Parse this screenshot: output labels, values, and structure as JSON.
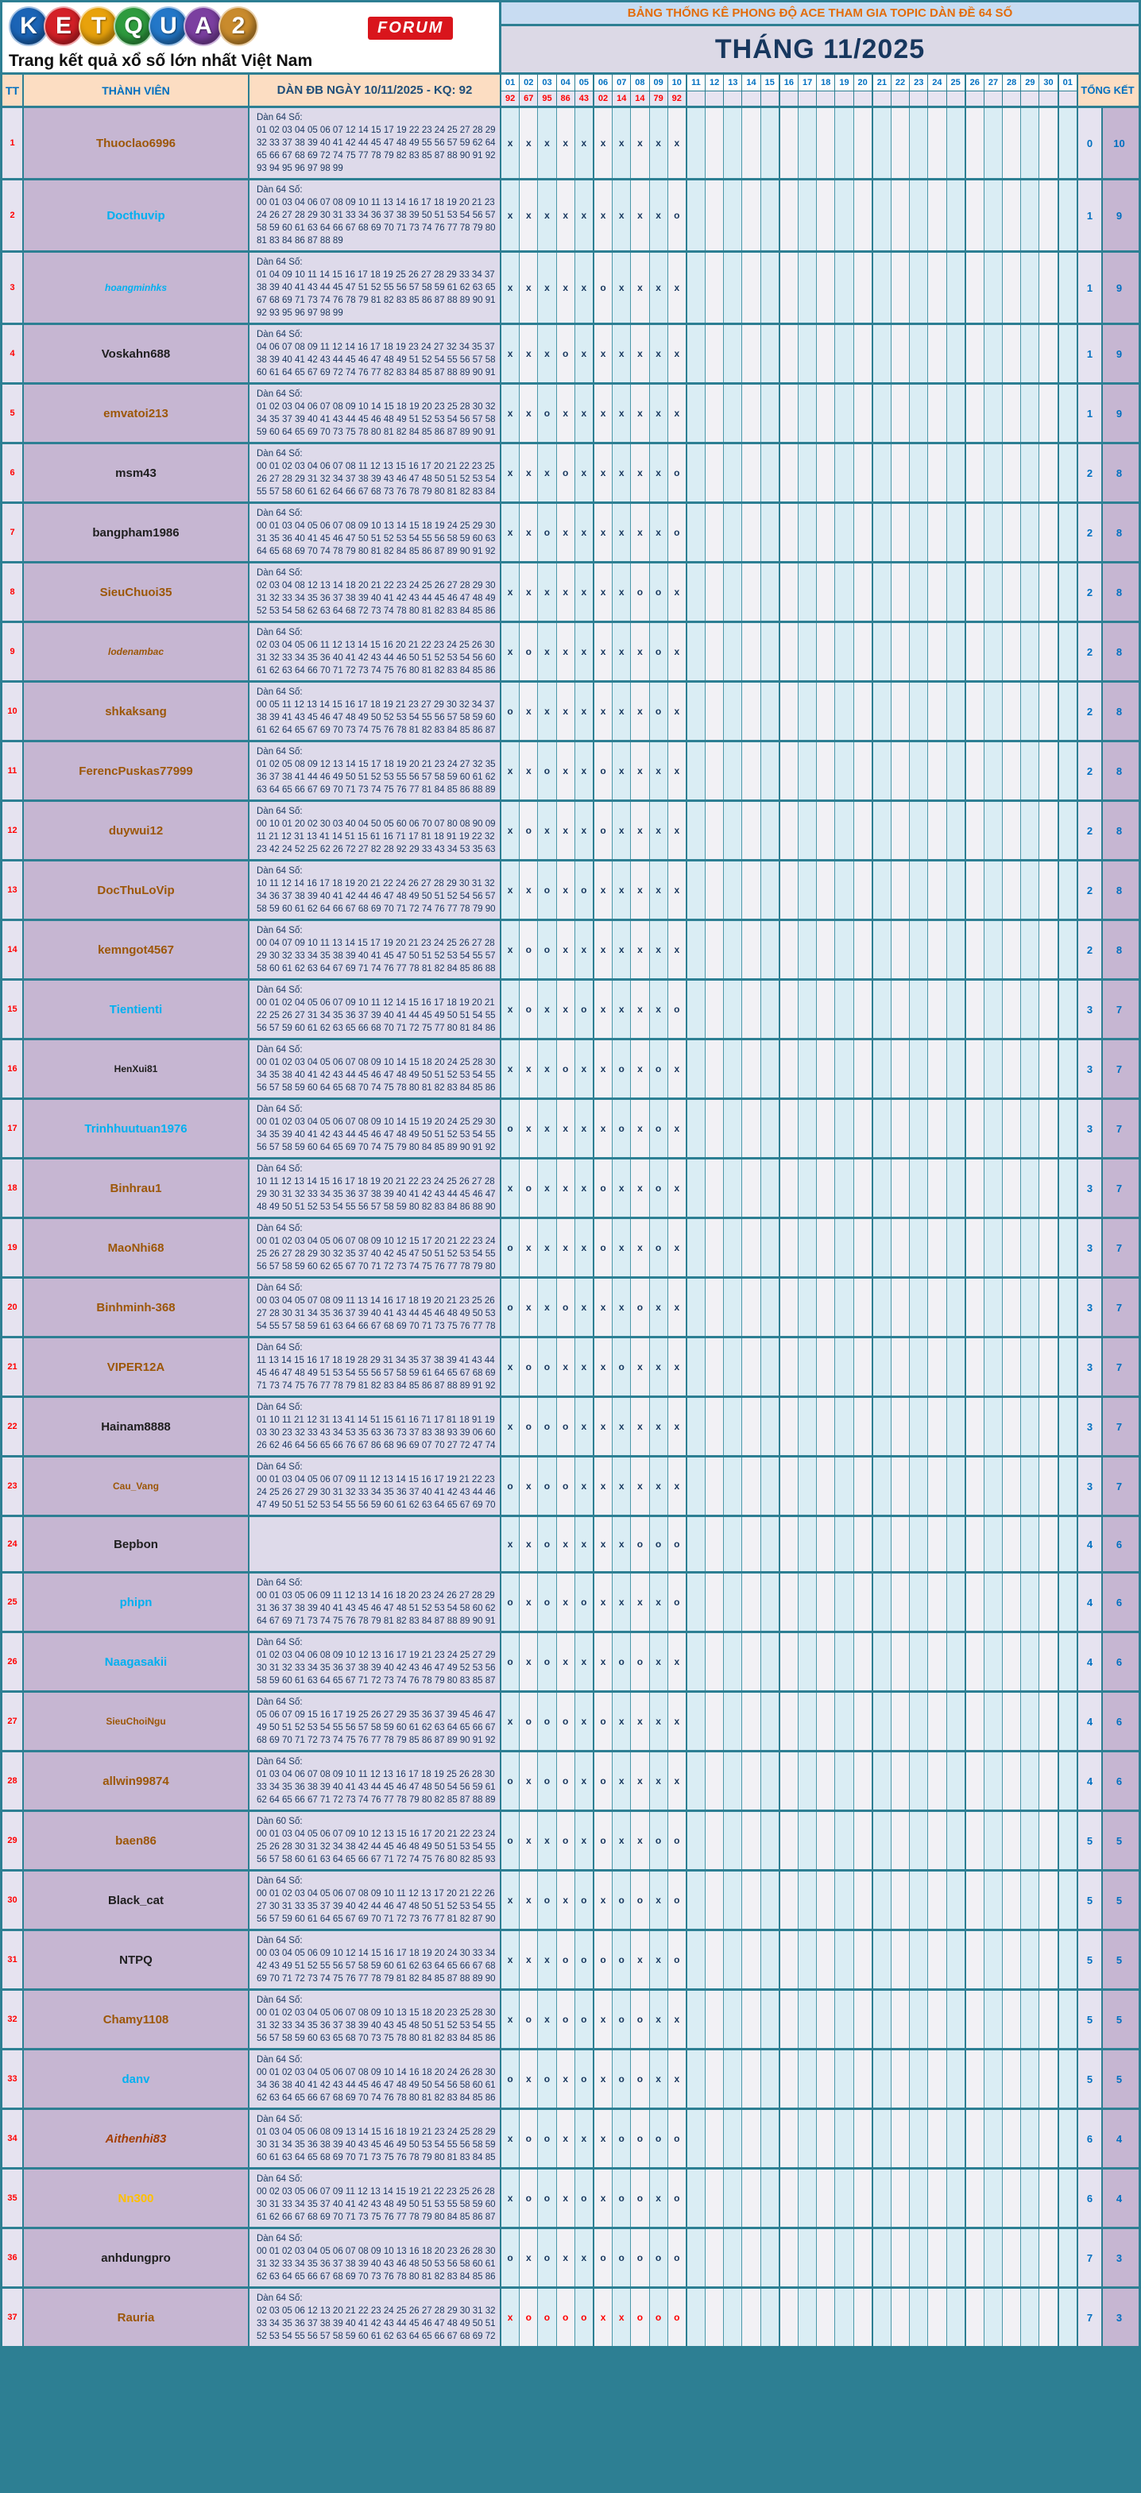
{
  "logo": {
    "letters": [
      {
        "ch": "K",
        "color": "#1b64b6"
      },
      {
        "ch": "E",
        "color": "#d42027"
      },
      {
        "ch": "T",
        "color": "#e8a20c"
      },
      {
        "ch": "Q",
        "color": "#2e9b3e"
      },
      {
        "ch": "U",
        "color": "#2377c8"
      },
      {
        "ch": "A",
        "color": "#7b3fa0"
      },
      {
        "ch": "2",
        "color": "#c98b2d"
      }
    ],
    "badge": "FORUM",
    "tagline": "Trang kết quả xổ số lớn nhất Việt Nam"
  },
  "banner": {
    "title": "BẢNG THỐNG KÊ PHONG ĐỘ ACE THAM GIA TOPIC DÀN ĐỀ 64 SỐ"
  },
  "month_title": "THÁNG 11/2025",
  "table": {
    "tt_label": "TT",
    "member_label": "THÀNH VIÊN",
    "dan_label": "DÀN ĐB NGÀY 10/11/2025 - KQ: 92",
    "tongket_label": "TỔNG KẾT",
    "days": [
      "01",
      "02",
      "03",
      "04",
      "05",
      "06",
      "07",
      "08",
      "09",
      "10",
      "11",
      "12",
      "13",
      "14",
      "15",
      "16",
      "17",
      "18",
      "19",
      "20",
      "21",
      "22",
      "23",
      "24",
      "25",
      "26",
      "27",
      "28",
      "29",
      "30",
      "01"
    ],
    "results": [
      "92",
      "67",
      "95",
      "86",
      "43",
      "02",
      "14",
      "14",
      "79",
      "92",
      "",
      "",
      "",
      "",
      "",
      "",
      "",
      "",
      "",
      "",
      "",
      "",
      "",
      "",
      "",
      "",
      "",
      "",
      "",
      "",
      ""
    ],
    "name_colors": {
      "cyan": "#00b0f0",
      "brown": "#9c5708",
      "black": "#1f1f1f",
      "gold": "#ffc000",
      "darkred": "#a33e03"
    },
    "mark_colors": {
      "navy": "#17375e",
      "red": "#ff0000"
    },
    "rows": [
      {
        "tt": "1",
        "name": "Thuoclao6996",
        "style": "brown",
        "dan_title": "Dàn 64 Số:",
        "lines": [
          "01 02 03 04 05 06 07 12 14 15 17 19 22 23 24 25 27 28 29",
          "32 33 37 38 39 40 41 42 44 45 47 48 49 55 56 57 59 62 64",
          "65 66 67 68 69 72 74 75 77 78 79 82 83 85 87 88 90 91 92",
          "93 94 95 96 97 98 99"
        ],
        "marks": "xxxxxxxxxx",
        "mark_color": "navy",
        "sum": [
          "0",
          "10"
        ]
      },
      {
        "tt": "2",
        "name": "Docthuvip",
        "style": "cyan",
        "dan_title": "Dàn 64 Số:",
        "lines": [
          "00 01 03 04 06 07 08 09 10 11 13 14 16 17 18 19 20 21 23",
          "24 26 27 28 29 30 31 33 34 36 37 38 39 50 51 53 54 56 57",
          "58 59 60 61 63 64 66 67 68 69 70 71 73 74 76 77 78 79 80",
          "81 83 84 86 87 88 89"
        ],
        "marks": "xxxxxxxxxo",
        "mark_color": "navy",
        "sum": [
          "1",
          "9"
        ]
      },
      {
        "tt": "3",
        "name": "hoangminhks",
        "style": "cyan",
        "small": true,
        "italic": true,
        "dan_title": "Dàn 64 Số:",
        "lines": [
          "01 04 09 10 11 14 15 16 17 18 19 25 26 27 28 29 33 34 37",
          "38 39 40 41 43 44 45 47 51 52 55 56 57 58 59 61 62 63 65",
          "67 68 69 71 73 74 76 78 79 81 82 83 85 86 87 88 89 90 91",
          "92 93 95 96 97 98 99"
        ],
        "marks": "xxxxxoxxxx",
        "mark_color": "navy",
        "sum": [
          "1",
          "9"
        ]
      },
      {
        "tt": "4",
        "name": "Voskahn688",
        "style": "black",
        "dan_title": "Dàn 64 Số:",
        "lines": [
          "04 06 07 08 09 11 12 14 16 17 18 19 23 24 27 32 34 35 37",
          "38 39 40 41 42 43 44 45 46 47 48 49 51 52 54 55 56 57 58",
          "60 61 64 65 67 69 72 74 76 77 82 83 84 85 87 88 89 90 91"
        ],
        "marks": "xxxoxxxxxx",
        "mark_color": "navy",
        "sum": [
          "1",
          "9"
        ]
      },
      {
        "tt": "5",
        "name": "emvatoi213",
        "style": "brown",
        "dan_title": "Dàn 64 Số:",
        "lines": [
          "01 02 03 04 06 07 08 09 10 14 15 18 19 20 23 25 28 30 32",
          "34 35 37 39 40 41 43 44 45 46 48 49 51 52 53 54 56 57 58",
          "59 60 64 65 69 70 73 75 78 80 81 82 84 85 86 87 89 90 91"
        ],
        "marks": "xxoxxxxxxx",
        "mark_color": "navy",
        "sum": [
          "1",
          "9"
        ]
      },
      {
        "tt": "6",
        "name": "msm43",
        "style": "black",
        "dan_title": "Dàn 64 Số:",
        "lines": [
          "00 01 02 03 04 06 07 08 11 12 13 15 16 17 20 21 22 23 25",
          "26 27 28 29 31 32 34 37 38 39 43 46 47 48 50 51 52 53 54",
          "55 57 58 60 61 62 64 66 67 68 73 76 78 79 80 81 82 83 84"
        ],
        "marks": "xxxoxxxxxo",
        "mark_color": "navy",
        "sum": [
          "2",
          "8"
        ]
      },
      {
        "tt": "7",
        "name": "bangpham1986",
        "style": "black",
        "dan_title": "Dàn 64 Số:",
        "lines": [
          "00 01 03 04 05 06 07 08 09 10 13 14 15 18 19 24 25 29 30",
          "31 35 36 40 41 45 46 47 50 51 52 53 54 55 56 58 59 60 63",
          "64 65 68 69 70 74 78 79 80 81 82 84 85 86 87 89 90 91 92"
        ],
        "marks": "xxoxxxxxxo",
        "mark_color": "navy",
        "sum": [
          "2",
          "8"
        ]
      },
      {
        "tt": "8",
        "name": "SieuChuoi35",
        "style": "brown",
        "dan_title": "Dàn 64 Số:",
        "lines": [
          "02 03 04 08 12 13 14 18 20 21 22 23 24 25 26 27 28 29 30",
          "31 32 33 34 35 36 37 38 39 40 41 42 43 44 45 46 47 48 49",
          "52 53 54 58 62 63 64 68 72 73 74 78 80 81 82 83 84 85 86"
        ],
        "marks": "xxxxxxxoox",
        "mark_color": "navy",
        "sum": [
          "2",
          "8"
        ]
      },
      {
        "tt": "9",
        "name": "lodenambac",
        "style": "brown",
        "small": true,
        "italic": true,
        "dan_title": "Dàn 64 Số:",
        "lines": [
          "02 03 04 05 06 11 12 13 14 15 16 20 21 22 23 24 25 26 30",
          "31 32 33 34 35 36 40 41 42 43 44 46 50 51 52 53 54 56 60",
          "61 62 63 64 66 70 71 72 73 74 75 76 80 81 82 83 84 85 86"
        ],
        "marks": "xoxxxxxxox",
        "mark_color": "navy",
        "sum": [
          "2",
          "8"
        ]
      },
      {
        "tt": "10",
        "name": "shkaksang",
        "style": "brown",
        "dan_title": "Dàn 64 Số:",
        "lines": [
          "00 05 11 12 13 14 15 16 17 18 19 21 23 27 29 30 32 34 37",
          "38 39 41 43 45 46 47 48 49 50 52 53 54 55 56 57 58 59 60",
          "61 62 64 65 67 69 70 73 74 75 76 78 81 82 83 84 85 86 87"
        ],
        "marks": "oxxxxxxxox",
        "mark_color": "navy",
        "sum": [
          "2",
          "8"
        ]
      },
      {
        "tt": "11",
        "name": "FerencPuskas77999",
        "style": "brown",
        "dan_title": "Dàn 64 Số:",
        "lines": [
          "01 02 05 08 09 12 13 14 15 17 18 19 20 21 23 24 27 32 35",
          "36 37 38 41 44 46 49 50 51 52 53 55 56 57 58 59 60 61 62",
          "63 64 65 66 67 69 70 71 73 74 75 76 77 81 84 85 86 88 89"
        ],
        "marks": "xxoxxoxxxx",
        "mark_color": "navy",
        "sum": [
          "2",
          "8"
        ]
      },
      {
        "tt": "12",
        "name": "duywui12",
        "style": "brown",
        "dan_title": "Dàn 64 Số:",
        "lines": [
          "00 10 01 20 02 30 03 40 04 50 05 60 06 70 07 80 08 90 09",
          "11 21 12 31 13 41 14 51 15 61 16 71 17 81 18 91 19 22 32",
          "23 42 24 52 25 62 26 72 27 82 28 92 29 33 43 34 53 35 63"
        ],
        "marks": "xoxxxoxxxx",
        "mark_color": "navy",
        "sum": [
          "2",
          "8"
        ]
      },
      {
        "tt": "13",
        "name": "DocThuLoVip",
        "style": "brown",
        "dan_title": "Dàn 64 Số:",
        "lines": [
          "10 11 12 14 16 17 18 19 20 21 22 24 26 27 28 29 30 31 32",
          "34 36 37 38 39 40 41 42 44 46 47 48 49 50 51 52 54 56 57",
          "58 59 60 61 62 64 66 67 68 69 70 71 72 74 76 77 78 79 90"
        ],
        "marks": "xxoxoxxxxx",
        "mark_color": "navy",
        "sum": [
          "2",
          "8"
        ]
      },
      {
        "tt": "14",
        "name": "kemngot4567",
        "style": "brown",
        "dan_title": "Dàn 64 Số:",
        "lines": [
          "00 04 07 09 10 11 13 14 15 17 19 20 21 23 24 25 26 27 28",
          "29 30 32 33 34 35 38 39 40 41 45 47 50 51 52 53 54 55 57",
          "58 60 61 62 63 64 67 69 71 74 76 77 78 81 82 84 85 86 88"
        ],
        "marks": "xooxxxxxxx",
        "mark_color": "navy",
        "sum": [
          "2",
          "8"
        ]
      },
      {
        "tt": "15",
        "name": "Tientienti",
        "style": "cyan",
        "dan_title": "Dàn 64 Số:",
        "lines": [
          "00 01 02 04 05 06 07 09 10 11 12 14 15 16 17 18 19 20 21",
          "22 25 26 27 31 34 35 36 37 39 40 41 44 45 49 50 51 54 55",
          "56 57 59 60 61 62 63 65 66 68 70 71 72 75 77 80 81 84 86"
        ],
        "marks": "xoxxoxxxxo",
        "mark_color": "navy",
        "sum": [
          "3",
          "7"
        ]
      },
      {
        "tt": "16",
        "name": "HenXui81",
        "style": "black",
        "small": true,
        "dan_title": "Dàn 64 Số:",
        "lines": [
          "00 01 02 03 04 05 06 07 08 09 10 14 15 18 20 24 25 28 30",
          "34 35 38 40 41 42 43 44 45 46 47 48 49 50 51 52 53 54 55",
          "56 57 58 59 60 64 65 68 70 74 75 78 80 81 82 83 84 85 86"
        ],
        "marks": "xxxoxxoxox",
        "mark_color": "navy",
        "sum": [
          "3",
          "7"
        ]
      },
      {
        "tt": "17",
        "name": "Trinhhuutuan1976",
        "style": "cyan",
        "dan_title": "Dàn 64 Số:",
        "lines": [
          "00 01 02 03 04 05 06 07 08 09 10 14 15 19 20 24 25 29 30",
          "34 35 39 40 41 42 43 44 45 46 47 48 49 50 51 52 53 54 55",
          "56 57 58 59 60 64 65 69 70 74 75 79 80 84 85 89 90 91 92"
        ],
        "marks": "oxxxxxoxox",
        "mark_color": "navy",
        "sum": [
          "3",
          "7"
        ]
      },
      {
        "tt": "18",
        "name": "Binhrau1",
        "style": "brown",
        "dan_title": "Dàn 64 Số:",
        "lines": [
          "10 11 12 13 14 15 16 17 18 19 20 21 22 23 24 25 26 27 28",
          "29 30 31 32 33 34 35 36 37 38 39 40 41 42 43 44 45 46 47",
          "48 49 50 51 52 53 54 55 56 57 58 59 80 82 83 84 86 88 90"
        ],
        "marks": "xoxxxoxxox",
        "mark_color": "navy",
        "sum": [
          "3",
          "7"
        ]
      },
      {
        "tt": "19",
        "name": "MaoNhi68",
        "style": "brown",
        "dan_title": "Dàn 64 Số:",
        "lines": [
          "00 01 02 03 04 05 06 07 08 09 10 12 15 17 20 21 22 23 24",
          "25 26 27 28 29 30 32 35 37 40 42 45 47 50 51 52 53 54 55",
          "56 57 58 59 60 62 65 67 70 71 72 73 74 75 76 77 78 79 80"
        ],
        "marks": "oxxxxoxxox",
        "mark_color": "navy",
        "sum": [
          "3",
          "7"
        ]
      },
      {
        "tt": "20",
        "name": "Binhminh-368",
        "style": "brown",
        "dan_title": "Dàn 64 Số:",
        "lines": [
          "00 03 04 05 07 08 09 11 13 14 16 17 18 19 20 21 23 25 26",
          "27 28 30 31 34 35 36 37 39 40 41 43 44 45 46 48 49 50 53",
          "54 55 57 58 59 61 63 64 66 67 68 69 70 71 73 75 76 77 78"
        ],
        "marks": "oxxoxxxoxx",
        "mark_color": "navy",
        "sum": [
          "3",
          "7"
        ]
      },
      {
        "tt": "21",
        "name": "VIPER12A",
        "style": "brown",
        "dan_title": "Dàn 64 Số:",
        "lines": [
          "11 13 14 15 16 17 18 19 28 29 31 34 35 37 38 39 41 43 44",
          "45 46 47 48 49 51 53 54 55 56 57 58 59 61 64 65 67 68 69",
          "71 73 74 75 76 77 78 79 81 82 83 84 85 86 87 88 89 91 92"
        ],
        "marks": "xooxxxoxxx",
        "mark_color": "navy",
        "sum": [
          "3",
          "7"
        ]
      },
      {
        "tt": "22",
        "name": "Hainam8888",
        "style": "black",
        "dan_title": "Dàn 64 Số:",
        "lines": [
          "01 10 11 21 12 31 13 41 14 51 15 61 16 71 17 81 18 91 19",
          "03 30 23 32 33 43 34 53 35 63 36 73 37 83 38 93 39 06 60",
          "26 62 46 64 56 65 66 76 67 86 68 96 69 07 70 27 72 47 74"
        ],
        "marks": "xoooxxxxxx",
        "mark_color": "navy",
        "sum": [
          "3",
          "7"
        ]
      },
      {
        "tt": "23",
        "name": "Cau_Vang",
        "style": "brown",
        "small": true,
        "dan_title": "Dàn 64 Số:",
        "lines": [
          "00 01 03 04 05 06 07 09 11 12 13 14 15 16 17 19 21 22 23",
          "24 25 26 27 29 30 31 32 33 34 35 36 37 40 41 42 43 44 46",
          "47 49 50 51 52 53 54 55 56 59 60 61 62 63 64 65 67 69 70"
        ],
        "marks": "oxooxxxxxx",
        "mark_color": "navy",
        "sum": [
          "3",
          "7"
        ]
      },
      {
        "tt": "24",
        "name": "Bepbon",
        "style": "black",
        "dan_title": "",
        "lines": [],
        "marks": "xxoxxxxooo",
        "mark_color": "navy",
        "sum": [
          "4",
          "6"
        ]
      },
      {
        "tt": "25",
        "name": "phipn",
        "style": "cyan",
        "dan_title": "Dàn 64 Số:",
        "lines": [
          "00 01 03 05 06 09 11 12 13 14 16 18 20 23 24 26 27 28 29",
          "31 36 37 38 39 40 41 43 45 46 47 48 51 52 53 54 58 60 62",
          "64 67 69 71 73 74 75 76 78 79 81 82 83 84 87 88 89 90 91"
        ],
        "marks": "oxoxoxxxxo",
        "mark_color": "navy",
        "sum": [
          "4",
          "6"
        ]
      },
      {
        "tt": "26",
        "name": "Naagasakii",
        "style": "cyan",
        "dan_title": "Dàn 64 Số:",
        "lines": [
          "01 02 03 04 06 08 09 10 12 13 16 17 19 21 23 24 25 27 29",
          "30 31 32 33 34 35 36 37 38 39 40 42 43 46 47 49 52 53 56",
          "58 59 60 61 63 64 65 67 71 72 73 74 76 78 79 80 83 85 87"
        ],
        "marks": "oxoxxxooxx",
        "mark_color": "navy",
        "sum": [
          "4",
          "6"
        ]
      },
      {
        "tt": "27",
        "name": "SieuChoiNgu",
        "style": "brown",
        "small": true,
        "dan_title": "Dàn 64 Số:",
        "lines": [
          "05 06 07 09 15 16 17 19 25 26 27 29 35 36 37 39 45 46 47",
          "49 50 51 52 53 54 55 56 57 58 59 60 61 62 63 64 65 66 67",
          "68 69 70 71 72 73 74 75 76 77 78 79 85 86 87 89 90 91 92"
        ],
        "marks": "xoooxoxxxx",
        "mark_color": "navy",
        "sum": [
          "4",
          "6"
        ]
      },
      {
        "tt": "28",
        "name": "allwin99874",
        "style": "brown",
        "dan_title": "Dàn 64 Số:",
        "lines": [
          "01 03 04 06 07 08 09 10 11 12 13 16 17 18 19 25 26 28 30",
          "33 34 35 36 38 39 40 41 43 44 45 46 47 48 50 54 56 59 61",
          "62 64 65 66 67 71 72 73 74 76 77 78 79 80 82 85 87 88 89"
        ],
        "marks": "oxooxoxxxx",
        "mark_color": "navy",
        "sum": [
          "4",
          "6"
        ]
      },
      {
        "tt": "29",
        "name": "baen86",
        "style": "brown",
        "dan_title": "Dàn 60 Số:",
        "lines": [
          "00 01 03 04 05 06 07 09 10 12 13 15 16 17 20 21 22 23 24",
          "25 26 28 30 31 32 34 38 42 44 45 46 48 49 50 51 53 54 55",
          "56 57 58 60 61 63 64 65 66 67 71 72 74 75 76 80 82 85 93"
        ],
        "marks": "oxxoxoxxoo",
        "mark_color": "navy",
        "sum": [
          "5",
          "5"
        ]
      },
      {
        "tt": "30",
        "name": "Black_cat",
        "style": "black",
        "dan_title": "Dàn 64 Số:",
        "lines": [
          "00 01 02 03 04 05 06 07 08 09 10 11 12 13 17 20 21 22 26",
          "27 30 31 33 35 37 39 40 42 44 46 47 48 50 51 52 53 54 55",
          "56 57 59 60 61 64 65 67 69 70 71 72 73 76 77 81 82 87 90"
        ],
        "marks": "xxoxoxooxo",
        "mark_color": "navy",
        "sum": [
          "5",
          "5"
        ]
      },
      {
        "tt": "31",
        "name": "NTPQ",
        "style": "black",
        "dan_title": "Dàn 64 Số:",
        "lines": [
          "00 03 04 05 06 09 10 12 14 15 16 17 18 19 20 24 30 33 34",
          "42 43 49 51 52 55 56 57 58 59 60 61 62 63 64 65 66 67 68",
          "69 70 71 72 73 74 75 76 77 78 79 81 82 84 85 87 88 89 90"
        ],
        "marks": "xxxooooxxo",
        "mark_color": "navy",
        "sum": [
          "5",
          "5"
        ]
      },
      {
        "tt": "32",
        "name": "Chamy1108",
        "style": "brown",
        "dan_title": "Dàn 64 Số:",
        "lines": [
          "00 01 02 03 04 05 06 07 08 09 10 13 15 18 20 23 25 28 30",
          "31 32 33 34 35 36 37 38 39 40 43 45 48 50 51 52 53 54 55",
          "56 57 58 59 60 63 65 68 70 73 75 78 80 81 82 83 84 85 86"
        ],
        "marks": "xoxooxooxx",
        "mark_color": "navy",
        "sum": [
          "5",
          "5"
        ]
      },
      {
        "tt": "33",
        "name": "danv",
        "style": "cyan",
        "dan_title": "Dàn 64 Số:",
        "lines": [
          "00 01 02 03 04 05 06 07 08 09 10 14 16 18 20 24 26 28 30",
          "34 36 38 40 41 42 43 44 45 46 47 48 49 50 54 56 58 60 61",
          "62 63 64 65 66 67 68 69 70 74 76 78 80 81 82 83 84 85 86"
        ],
        "marks": "oxoxoxooxx",
        "mark_color": "navy",
        "sum": [
          "5",
          "5"
        ]
      },
      {
        "tt": "34",
        "name": "Aithenhi83",
        "style": "darkred",
        "italic": true,
        "dan_title": "Dàn 64 Số:",
        "lines": [
          "01 03 04 05 06 08 09 13 14 15 16 18 19 21 23 24 25 28 29",
          "30 31 34 35 36 38 39 40 43 45 46 49 50 53 54 55 56 58 59",
          "60 61 63 64 65 68 69 70 71 73 75 76 78 79 80 81 83 84 85"
        ],
        "marks": "xooxxxoooo",
        "mark_color": "navy",
        "sum": [
          "6",
          "4"
        ]
      },
      {
        "tt": "35",
        "name": "Nn300",
        "style": "gold",
        "dan_title": "Dàn 64 Số:",
        "lines": [
          "00 02 03 05 06 07 09 11 12 13 14 15 19 21 22 23 25 26 28",
          "30 31 33 34 35 37 40 41 42 43 48 49 50 51 53 55 58 59 60",
          "61 62 66 67 68 69 70 71 73 75 76 77 78 79 80 84 85 86 87"
        ],
        "marks": "xooxoxooxo",
        "mark_color": "navy",
        "sum": [
          "6",
          "4"
        ]
      },
      {
        "tt": "36",
        "name": "anhdungpro",
        "style": "black",
        "dan_title": "Dàn 64 Số:",
        "lines": [
          "00 01 02 03 04 05 06 07 08 09 10 13 16 18 20 23 26 28 30",
          "31 32 33 34 35 36 37 38 39 40 43 46 48 50 53 56 58 60 61",
          "62 63 64 65 66 67 68 69 70 73 76 78 80 81 82 83 84 85 86"
        ],
        "marks": "oxoxxooooo",
        "mark_color": "navy",
        "sum": [
          "7",
          "3"
        ]
      },
      {
        "tt": "37",
        "name": "Rauria",
        "style": "brown",
        "dan_title": "Dàn 64 Số:",
        "lines": [
          "02 03 05 06 12 13 20 21 22 23 24 25 26 27 28 29 30 31 32",
          "33 34 35 36 37 38 39 40 41 42 43 44 45 46 47 48 49 50 51",
          "52 53 54 55 56 57 58 59 60 61 62 63 64 65 66 67 68 69 72"
        ],
        "marks": "xooooxxooo",
        "mark_color": "red",
        "sum": [
          "7",
          "3"
        ]
      }
    ]
  }
}
